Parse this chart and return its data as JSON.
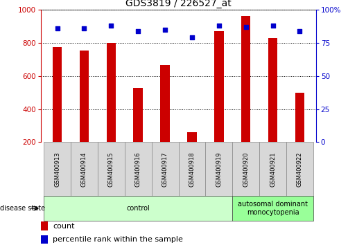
{
  "title": "GDS3819 / 226527_at",
  "samples": [
    "GSM400913",
    "GSM400914",
    "GSM400915",
    "GSM400916",
    "GSM400917",
    "GSM400918",
    "GSM400919",
    "GSM400920",
    "GSM400921",
    "GSM400922"
  ],
  "counts": [
    775,
    752,
    800,
    528,
    665,
    262,
    870,
    965,
    830,
    497
  ],
  "percentile_ranks": [
    86,
    86,
    88,
    84,
    85,
    79,
    88,
    87,
    88,
    84
  ],
  "bar_color": "#cc0000",
  "dot_color": "#0000cc",
  "left_axis_color": "#cc0000",
  "right_axis_color": "#0000cc",
  "ylim_left": [
    200,
    1000
  ],
  "ylim_right": [
    0,
    100
  ],
  "left_yticks": [
    200,
    400,
    600,
    800,
    1000
  ],
  "right_yticks": [
    0,
    25,
    50,
    75,
    100
  ],
  "groups": [
    {
      "label": "control",
      "start": 0,
      "end": 7,
      "color": "#ccffcc"
    },
    {
      "label": "autosomal dominant\nmonocytopenia",
      "start": 7,
      "end": 10,
      "color": "#99ff99"
    }
  ],
  "disease_state_label": "disease state",
  "legend_count_label": "count",
  "legend_percentile_label": "percentile rank within the sample",
  "bar_width": 0.35,
  "name_box_color": "#d8d8d8"
}
